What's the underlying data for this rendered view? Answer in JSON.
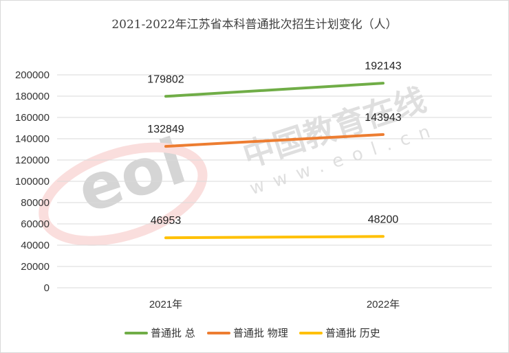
{
  "chart_data": {
    "type": "line",
    "title": "2021-2022年江苏省本科普通批次招生计划变化（人）",
    "categories": [
      "2021年",
      "2022年"
    ],
    "ylim": [
      0,
      200000
    ],
    "yticks": [
      0,
      20000,
      40000,
      60000,
      80000,
      100000,
      120000,
      140000,
      160000,
      180000,
      200000
    ],
    "grid": true,
    "legend_position": "bottom",
    "series": [
      {
        "name": "普通批 总",
        "values": [
          179802,
          192143
        ],
        "color": "#70ad47"
      },
      {
        "name": "普通批 物理",
        "values": [
          132849,
          143943
        ],
        "color": "#ed7d31"
      },
      {
        "name": "普通批 历史",
        "values": [
          46953,
          48200
        ],
        "color": "#ffc000"
      }
    ]
  },
  "watermark": {
    "logo_text": "eol",
    "brand_text": "中国教育在线",
    "url_text": "www.eol.cn",
    "color": "#e53935"
  }
}
